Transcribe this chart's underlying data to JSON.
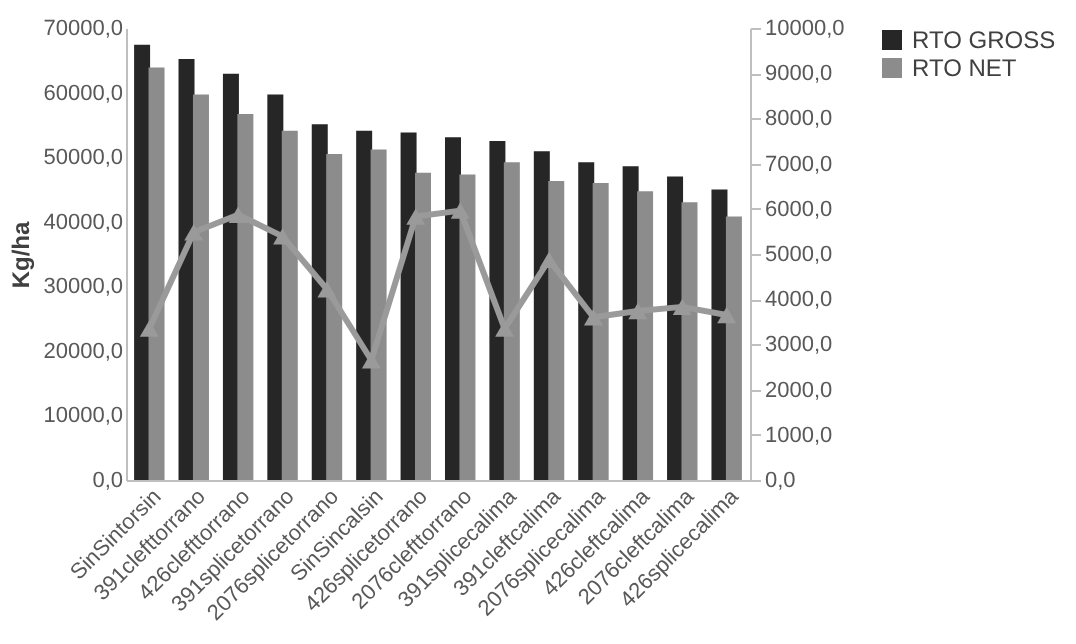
{
  "chart_data": {
    "type": "bar",
    "ylabel": "Kg/ha",
    "categories": [
      "SinSintorsin",
      "391clefttorrano",
      "426clefttorrano",
      "391splicetorrano",
      "2076splicetorrano",
      "SinSincalsin",
      "426splicetorrano",
      "2076clefttorrano",
      "391splicecalima",
      "391cleftcalima",
      "2076splicecalima",
      "426cleftcalima",
      "2076cleftcalima",
      "426splicecalima"
    ],
    "series": [
      {
        "name": "RTO GROSS",
        "color": "#262626",
        "values": [
          67400,
          65200,
          62900,
          59700,
          55100,
          54100,
          53800,
          53100,
          52500,
          50900,
          49200,
          48600,
          47000,
          45000
        ]
      },
      {
        "name": "RTO NET",
        "color": "#8c8c8c",
        "values": [
          63900,
          59700,
          56700,
          54100,
          50500,
          51200,
          47600,
          47300,
          49200,
          46300,
          46000,
          44700,
          43000,
          40800
        ]
      },
      {
        "type": "line",
        "axis": "y2",
        "color": "#9a9a9a",
        "marker": "triangle",
        "values": [
          3350,
          5480,
          5870,
          5390,
          4220,
          2650,
          5830,
          5960,
          3350,
          4870,
          3600,
          3740,
          3830,
          3650
        ]
      }
    ],
    "ylim": [
      0,
      70000
    ],
    "yticks": [
      {
        "value": 0,
        "label": "0,0"
      },
      {
        "value": 10000,
        "label": "10000,0"
      },
      {
        "value": 20000,
        "label": "20000,0"
      },
      {
        "value": 30000,
        "label": "30000,0"
      },
      {
        "value": 40000,
        "label": "40000,0"
      },
      {
        "value": 50000,
        "label": "50000,0"
      },
      {
        "value": 60000,
        "label": "60000,0"
      },
      {
        "value": 70000,
        "label": "70000,0"
      }
    ],
    "y2lim": [
      0,
      10000
    ],
    "y2ticks": [
      {
        "value": 0,
        "label": "0,0"
      },
      {
        "value": 1000,
        "label": "1000,0"
      },
      {
        "value": 2000,
        "label": "2000,0"
      },
      {
        "value": 3000,
        "label": "3000,0"
      },
      {
        "value": 4000,
        "label": "4000,0"
      },
      {
        "value": 5000,
        "label": "5000,0"
      },
      {
        "value": 6000,
        "label": "6000,0"
      },
      {
        "value": 7000,
        "label": "7000,0"
      },
      {
        "value": 8000,
        "label": "8000,0"
      },
      {
        "value": 9000,
        "label": "9000,0"
      },
      {
        "value": 10000,
        "label": "10000,0"
      }
    ],
    "grid": false,
    "legend": "right"
  }
}
